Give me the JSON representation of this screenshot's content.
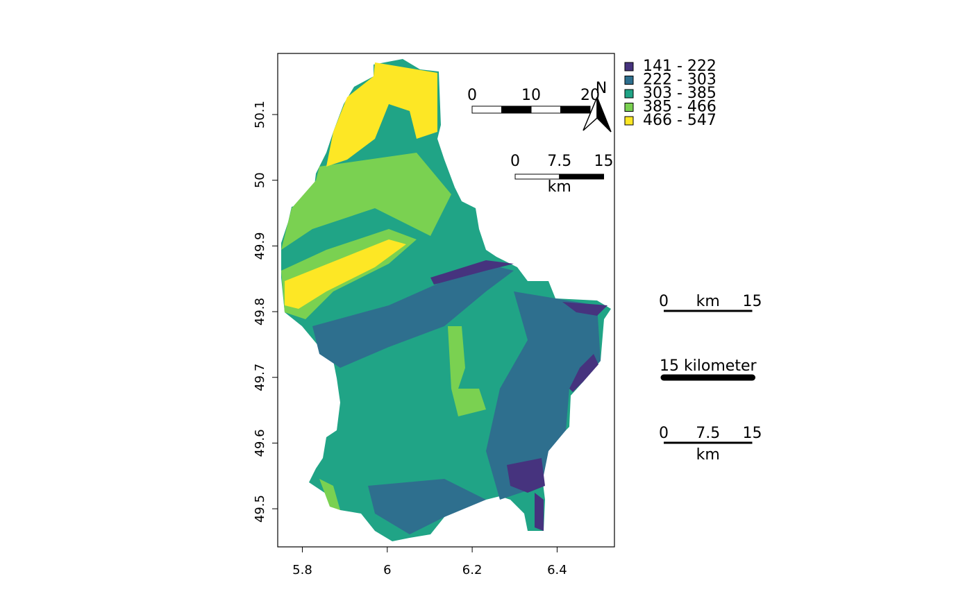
{
  "chart_data": {
    "type": "raster-map",
    "xlim": [
      5.742,
      6.535
    ],
    "ylim": [
      49.442,
      50.193
    ],
    "xticks": [
      5.8,
      6,
      6.2,
      6.4
    ],
    "yticks": [
      49.5,
      49.6,
      49.7,
      49.8,
      49.9,
      50,
      50.1
    ],
    "legend": {
      "position": "topright",
      "labels": [
        "141 - 222",
        "222 - 303",
        "303 - 385",
        "385 - 466",
        "466 - 547"
      ],
      "colors": [
        "#46337E",
        "#2E6F8E",
        "#20A486",
        "#7AD151",
        "#FDE725"
      ]
    },
    "north_arrow": "N",
    "scalebars": [
      {
        "labels": [
          0,
          10,
          20
        ]
      },
      {
        "labels": [
          0,
          7.5,
          15
        ],
        "unit": "km"
      },
      {
        "labels": [
          0,
          15
        ],
        "unit": "km"
      },
      {
        "label": "15 kilometer"
      },
      {
        "labels": [
          0,
          7.5,
          15
        ],
        "unit": "km"
      }
    ]
  }
}
